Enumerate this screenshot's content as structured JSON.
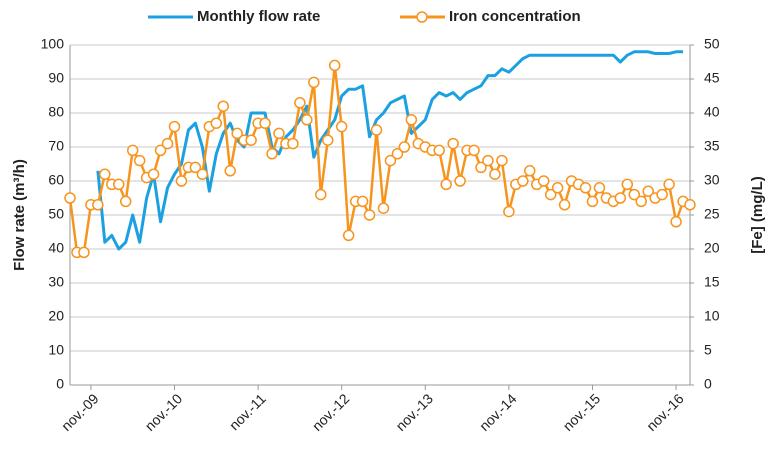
{
  "chart_data": {
    "type": "line",
    "y_label": "Flow rate (m³/h)",
    "y2_label": "[Fe] (mg/L)",
    "xlim": [
      "2009-08",
      "2017-01"
    ],
    "xticks": [
      {
        "value": "2009-11",
        "label": "nov.-09"
      },
      {
        "value": "2010-11",
        "label": "nov.-10"
      },
      {
        "value": "2011-11",
        "label": "nov.-11"
      },
      {
        "value": "2012-11",
        "label": "nov.-12"
      },
      {
        "value": "2013-11",
        "label": "nov.-13"
      },
      {
        "value": "2014-11",
        "label": "nov.-14"
      },
      {
        "value": "2015-11",
        "label": "nov.-15"
      },
      {
        "value": "2016-11",
        "label": "nov.-16"
      }
    ],
    "ylim": [
      0,
      100
    ],
    "yticks": [
      0,
      10,
      20,
      30,
      40,
      50,
      60,
      70,
      80,
      90,
      100
    ],
    "y2lim": [
      0,
      50
    ],
    "y2ticks": [
      0,
      5,
      10,
      15,
      20,
      25,
      30,
      35,
      40,
      45,
      50
    ],
    "grid": true,
    "legend": "top",
    "series": [
      {
        "name": "Monthly flow rate",
        "color": "#1ba1e2",
        "markers": false,
        "x": [
          "2009-12",
          "2010-01",
          "2010-02",
          "2010-03",
          "2010-04",
          "2010-05",
          "2010-06",
          "2010-07",
          "2010-08",
          "2010-09",
          "2010-10",
          "2010-11",
          "2010-12",
          "2011-01",
          "2011-02",
          "2011-03",
          "2011-04",
          "2011-05",
          "2011-06",
          "2011-07",
          "2011-08",
          "2011-09",
          "2011-10",
          "2011-11",
          "2011-12",
          "2012-01",
          "2012-02",
          "2012-03",
          "2012-04",
          "2012-05",
          "2012-06",
          "2012-07",
          "2012-08",
          "2012-09",
          "2012-10",
          "2012-11",
          "2012-12",
          "2013-01",
          "2013-02",
          "2013-03",
          "2013-04",
          "2013-05",
          "2013-06",
          "2013-07",
          "2013-08",
          "2013-09",
          "2013-10",
          "2013-11",
          "2013-12",
          "2014-01",
          "2014-02",
          "2014-03",
          "2014-04",
          "2014-05",
          "2014-06",
          "2014-07",
          "2014-08",
          "2014-09",
          "2014-10",
          "2014-11",
          "2014-12",
          "2015-01",
          "2015-02",
          "2015-03",
          "2015-04",
          "2015-05",
          "2015-06",
          "2015-07",
          "2015-08",
          "2015-09",
          "2015-10",
          "2015-11",
          "2015-12",
          "2016-01",
          "2016-02",
          "2016-03",
          "2016-04",
          "2016-05",
          "2016-06",
          "2016-07",
          "2016-08",
          "2016-09",
          "2016-10",
          "2016-11",
          "2016-12"
        ],
        "values": [
          63,
          42,
          44,
          40,
          42,
          50,
          42,
          55,
          62,
          48,
          58,
          62,
          65,
          75,
          77,
          70,
          57,
          68,
          74,
          77,
          72,
          70,
          80,
          80,
          80,
          70,
          68,
          73,
          75,
          78,
          82,
          67,
          72,
          75,
          78,
          85,
          87,
          87,
          88,
          73,
          78,
          80,
          83,
          84,
          85,
          74,
          76,
          78,
          84,
          86,
          85,
          86,
          84,
          86,
          87,
          88,
          91,
          91,
          93,
          92,
          94,
          96,
          97,
          97,
          97,
          97,
          97,
          97,
          97,
          97,
          97,
          97,
          97,
          97,
          97,
          95,
          97,
          98,
          98,
          98,
          97.5,
          97.5,
          97.5,
          98,
          98
        ]
      },
      {
        "name": "Iron concentration",
        "color": "#f7941d",
        "markers": true,
        "axis": "y2",
        "x": [
          "2009-08",
          "2009-09",
          "2009-10",
          "2009-11",
          "2009-12",
          "2010-01",
          "2010-02",
          "2010-03",
          "2010-04",
          "2010-05",
          "2010-06",
          "2010-07",
          "2010-08",
          "2010-09",
          "2010-10",
          "2010-11",
          "2010-12",
          "2011-01",
          "2011-02",
          "2011-03",
          "2011-04",
          "2011-05",
          "2011-06",
          "2011-07",
          "2011-08",
          "2011-09",
          "2011-10",
          "2011-11",
          "2011-12",
          "2012-01",
          "2012-02",
          "2012-03",
          "2012-04",
          "2012-05",
          "2012-06",
          "2012-07",
          "2012-08",
          "2012-09",
          "2012-10",
          "2012-11",
          "2012-12",
          "2013-01",
          "2013-02",
          "2013-03",
          "2013-04",
          "2013-05",
          "2013-06",
          "2013-07",
          "2013-08",
          "2013-09",
          "2013-10",
          "2013-11",
          "2013-12",
          "2014-01",
          "2014-02",
          "2014-03",
          "2014-04",
          "2014-05",
          "2014-06",
          "2014-07",
          "2014-08",
          "2014-09",
          "2014-10",
          "2014-11",
          "2014-12",
          "2015-01",
          "2015-02",
          "2015-03",
          "2015-04",
          "2015-05",
          "2015-06",
          "2015-07",
          "2015-08",
          "2015-09",
          "2015-10",
          "2015-11",
          "2015-12",
          "2016-01",
          "2016-02",
          "2016-03",
          "2016-04",
          "2016-05",
          "2016-06",
          "2016-07",
          "2016-08",
          "2016-09",
          "2016-10",
          "2016-11",
          "2016-12",
          "2017-01"
        ],
        "values": [
          27.5,
          19.5,
          19.5,
          26.5,
          26.5,
          31,
          29.5,
          29.5,
          27,
          34.5,
          33,
          30.5,
          31,
          34.5,
          35.5,
          38,
          30,
          32,
          32,
          31,
          38,
          38.5,
          41,
          31.5,
          37,
          36,
          36,
          38.5,
          38.5,
          34,
          37,
          35.5,
          35.5,
          41.5,
          39,
          44.5,
          28,
          36,
          47,
          38,
          22,
          27,
          27,
          25,
          37.5,
          26,
          33,
          34,
          35,
          39,
          35.5,
          35,
          34.5,
          34.5,
          29.5,
          35.5,
          30,
          34.5,
          34.5,
          32,
          33,
          31,
          33,
          25.5,
          29.5,
          30,
          31.5,
          29.5,
          30,
          28,
          29,
          26.5,
          30,
          29.5,
          29,
          27,
          29,
          27.5,
          27,
          27.5,
          29.5,
          28,
          27,
          28.5,
          27.5,
          28,
          29.5,
          24,
          27,
          26.5
        ]
      }
    ]
  }
}
